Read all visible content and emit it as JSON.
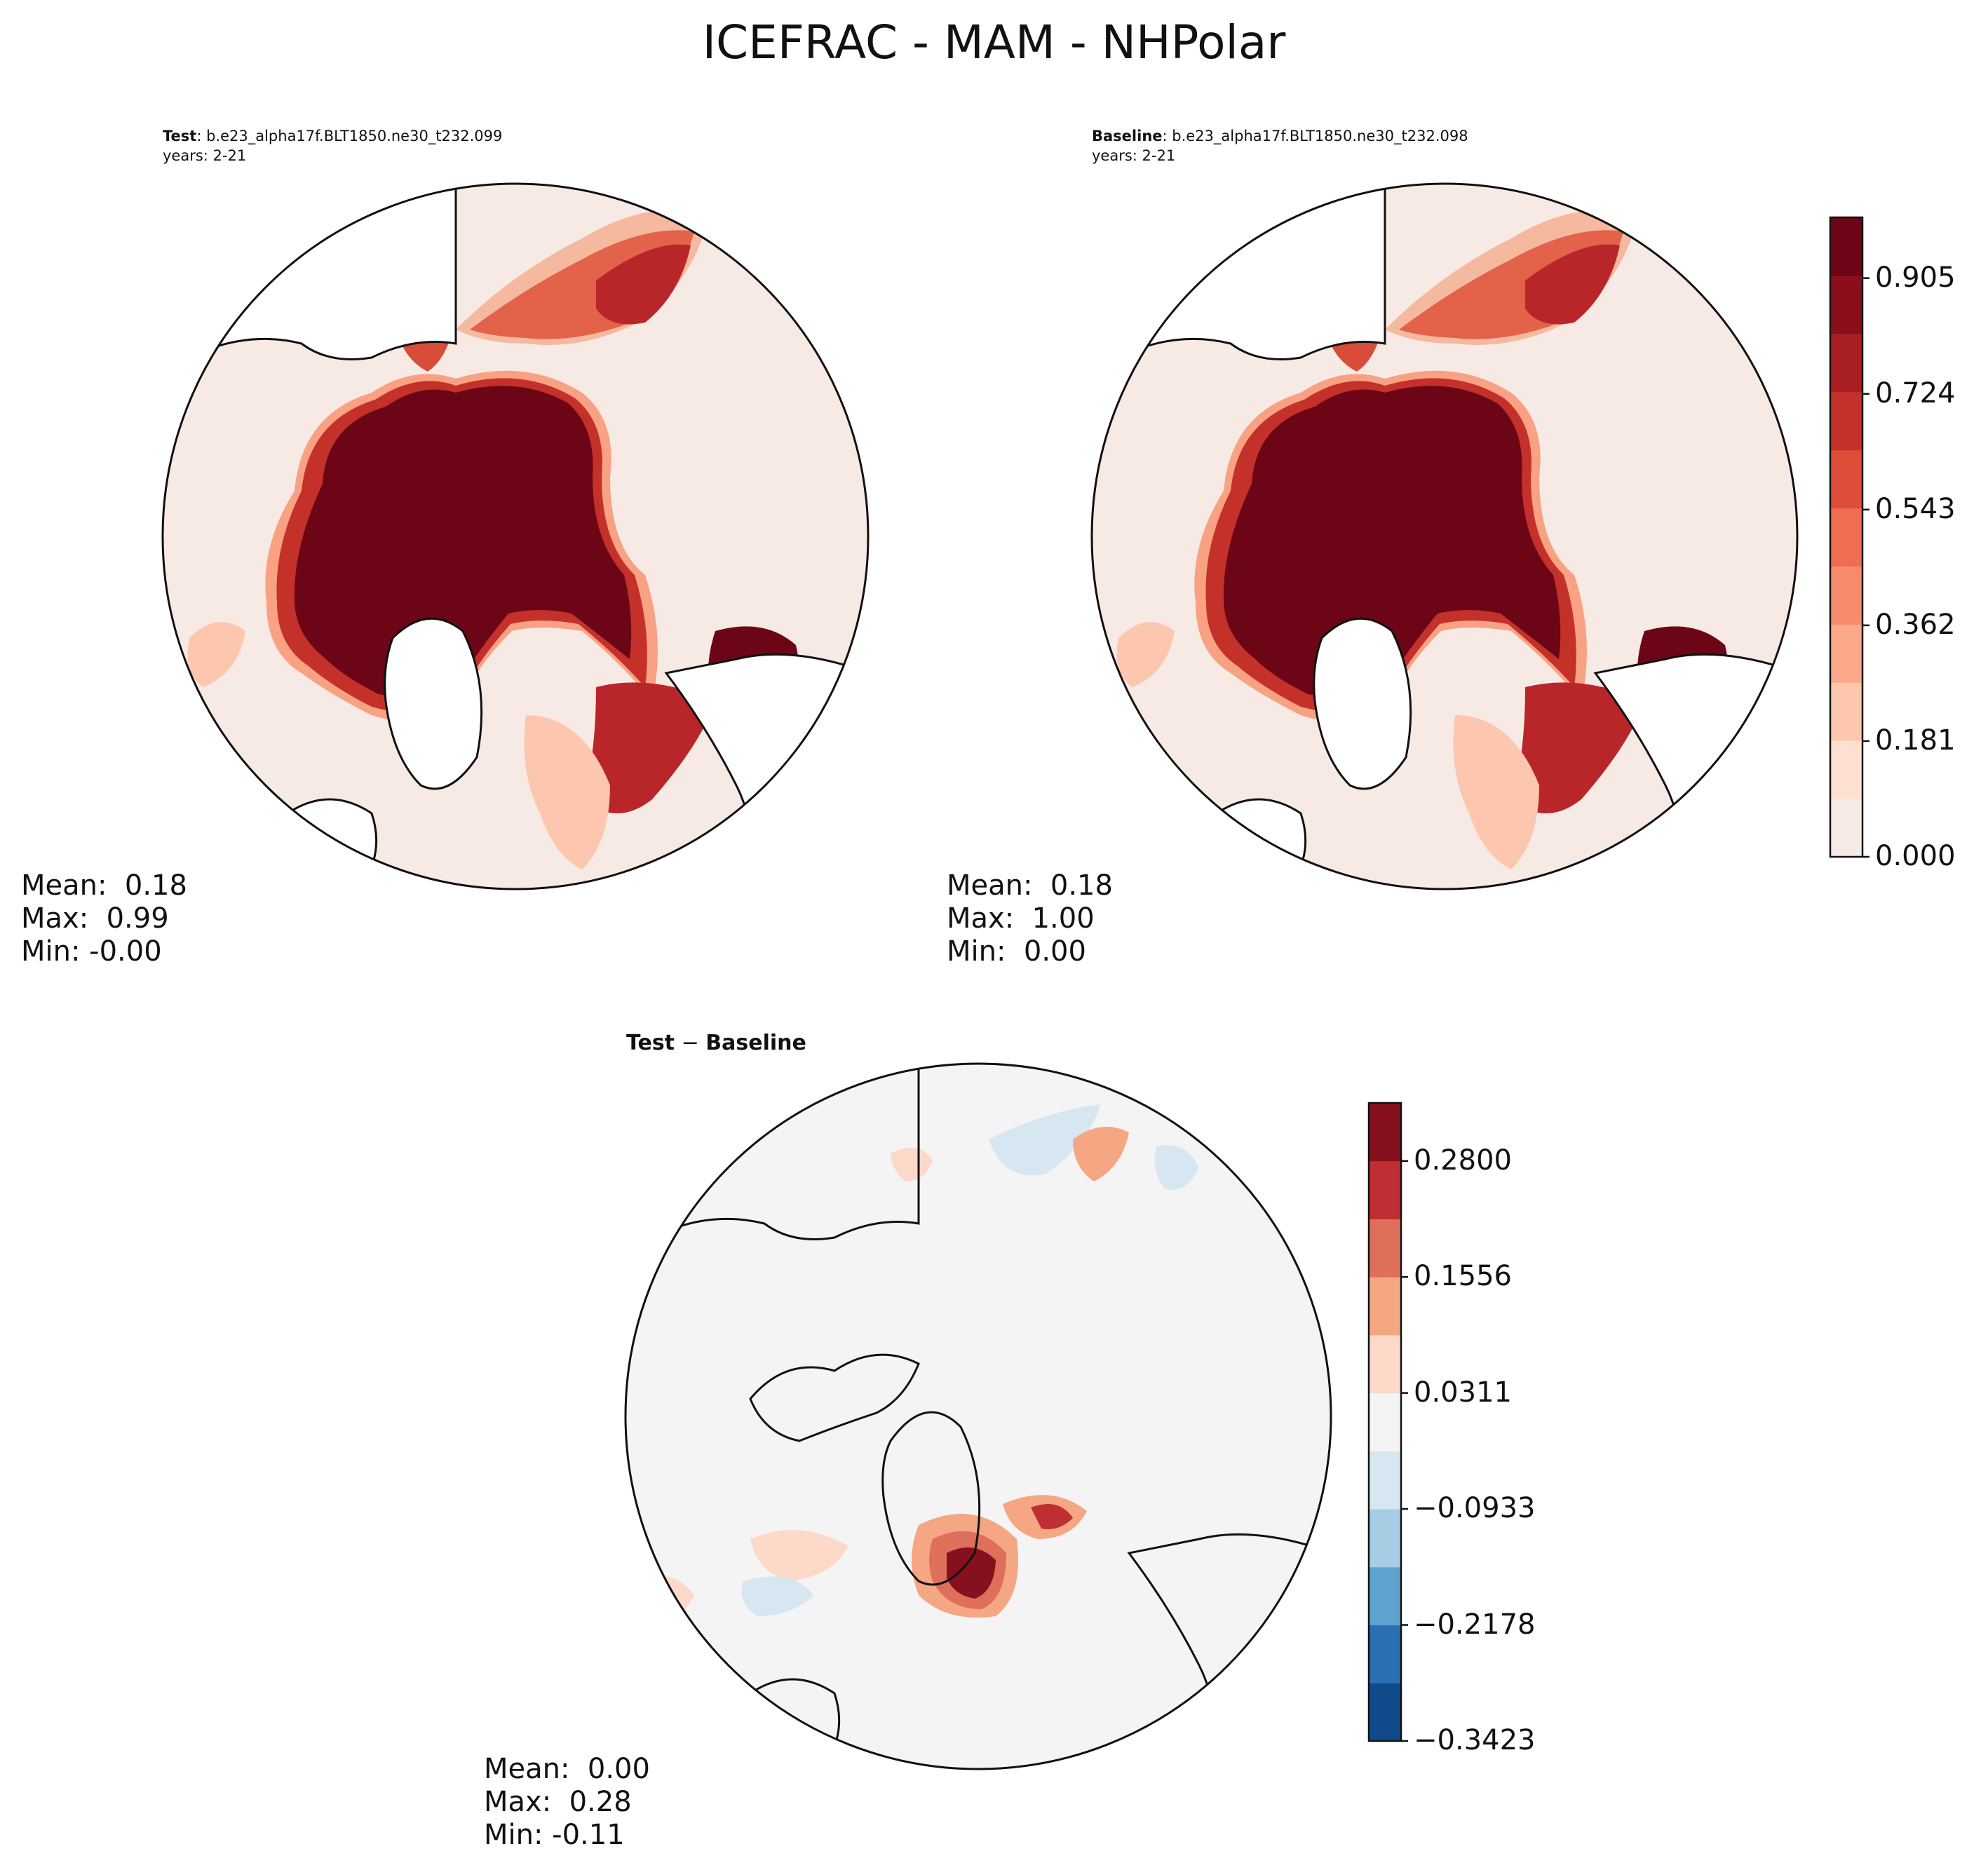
{
  "figure": {
    "title": "ICEFRAC - MAM - NHPolar"
  },
  "panels": {
    "test": {
      "label": "Test",
      "case": ": b.e23_alpha17f.BLT1850.ne30_t232.099",
      "years": "years: 2-21",
      "mean": "Mean:  0.18",
      "max": "Max:  0.99",
      "min": "Min: -0.00"
    },
    "baseline": {
      "label": "Baseline",
      "case": ": b.e23_alpha17f.BLT1850.ne30_t232.098",
      "years": "years: 2-21",
      "mean": "Mean:  0.18",
      "max": "Max:  1.00",
      "min": "Min:  0.00"
    },
    "diff": {
      "label_test": "Test",
      "label_minus": " − ",
      "label_baseline": "Baseline",
      "mean": "Mean:  0.00",
      "max": "Max:  0.28",
      "min": "Min: -0.11"
    }
  },
  "chart_data": [
    {
      "type": "heatmap",
      "projection": "north polar stereographic",
      "panel": "test",
      "colormap": "Reds",
      "colorbar": {
        "ticks": [
          "0.000",
          "0.181",
          "0.362",
          "0.543",
          "0.724",
          "0.905"
        ],
        "range": [
          0,
          1
        ],
        "levels": 11
      },
      "stats": {
        "mean": 0.18,
        "max": 0.99,
        "min": -0.0
      }
    },
    {
      "type": "heatmap",
      "projection": "north polar stereographic",
      "panel": "baseline",
      "colormap": "Reds",
      "colorbar": {
        "ticks": [
          "0.000",
          "0.181",
          "0.362",
          "0.543",
          "0.724",
          "0.905"
        ],
        "range": [
          0,
          1
        ],
        "levels": 11
      },
      "stats": {
        "mean": 0.18,
        "max": 1.0,
        "min": 0.0
      }
    },
    {
      "type": "heatmap",
      "projection": "north polar stereographic",
      "panel": "diff",
      "colormap": "RdBu_r",
      "colorbar": {
        "ticks": [
          "−0.3423",
          "−0.2178",
          "−0.0933",
          "0.0311",
          "0.1556",
          "0.2800"
        ],
        "range": [
          -0.3423,
          0.3423
        ],
        "levels": 11
      },
      "stats": {
        "mean": 0.0,
        "max": 0.28,
        "min": -0.11
      }
    }
  ],
  "colors": {
    "reds": [
      "#f7eae4",
      "#fde0d2",
      "#fcc7ae",
      "#fca98b",
      "#f98b6c",
      "#ef6d50",
      "#de4d3a",
      "#c3312a",
      "#a81e22",
      "#8b0f1b",
      "#6c0616"
    ],
    "rdbu": [
      "#114a8a",
      "#2a6fb2",
      "#5ea3cf",
      "#a6cde3",
      "#d6e7f1",
      "#f4f4f4",
      "#fcd9c8",
      "#f5a784",
      "#de6f5a",
      "#bf2e33",
      "#86101e"
    ]
  }
}
